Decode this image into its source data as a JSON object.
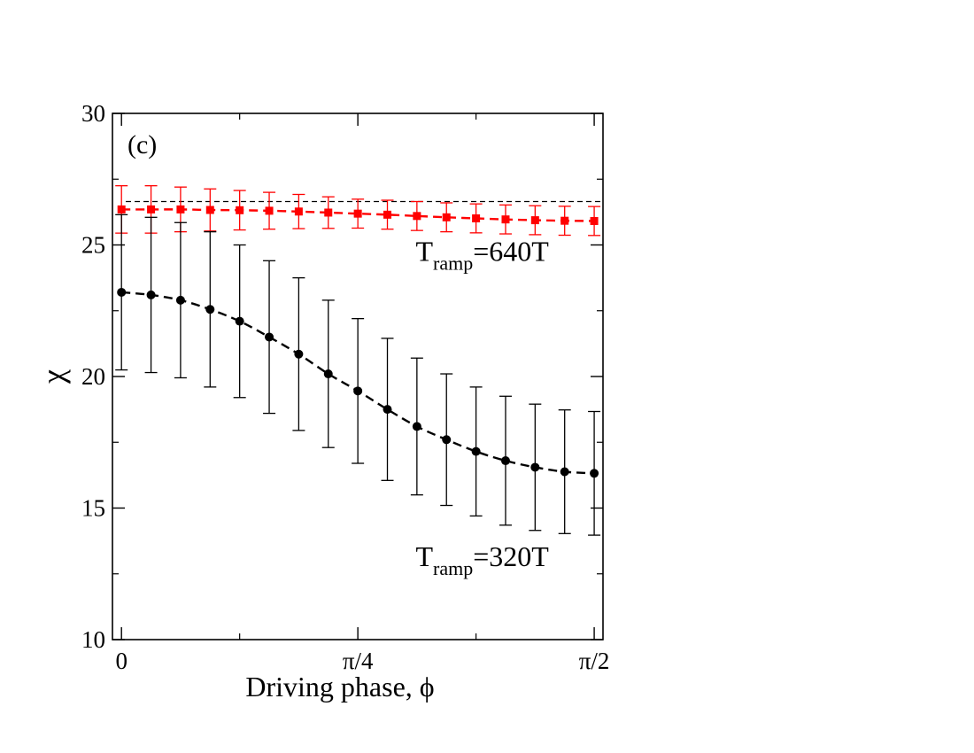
{
  "chart_data": {
    "type": "line",
    "panel_label": "(c)",
    "xlabel": "Driving phase, ϕ",
    "ylabel": "χ",
    "xlim": [
      -0.03,
      1.6
    ],
    "ylim": [
      10,
      30
    ],
    "yticks": [
      10,
      15,
      20,
      25,
      30
    ],
    "ytick_labels": [
      "10",
      "15",
      "20",
      "25",
      "30"
    ],
    "xticks": [
      0,
      0.7853981634,
      1.5707963268
    ],
    "xtick_labels": [
      "0",
      "π/4",
      "π/2"
    ],
    "grid": false,
    "colors": {
      "series_640": "#ff0000",
      "series_320": "#000000",
      "reference": "#000000"
    },
    "reference_line": {
      "y": 26.65,
      "style": "dashed"
    },
    "series": [
      {
        "name": "T_ramp=640T",
        "label_main": "T",
        "label_sub": "ramp",
        "label_tail": "=640T",
        "label_x": 1.42,
        "label_y": 24.4,
        "marker": "square",
        "color": "#ff0000",
        "x": [
          0,
          0.0982,
          0.1963,
          0.2945,
          0.3927,
          0.4909,
          0.589,
          0.6872,
          0.7854,
          0.8836,
          0.9817,
          1.0799,
          1.1781,
          1.2763,
          1.3744,
          1.4726,
          1.5708
        ],
        "y": [
          26.35,
          26.35,
          26.35,
          26.33,
          26.32,
          26.3,
          26.27,
          26.23,
          26.19,
          26.15,
          26.1,
          26.05,
          26.01,
          25.97,
          25.94,
          25.92,
          25.91
        ],
        "err": [
          0.9,
          0.9,
          0.85,
          0.8,
          0.75,
          0.7,
          0.65,
          0.6,
          0.55,
          0.55,
          0.55,
          0.55,
          0.55,
          0.55,
          0.55,
          0.55,
          0.55
        ]
      },
      {
        "name": "T_ramp=320T",
        "label_main": "T",
        "label_sub": "ramp",
        "label_tail": "=320T",
        "label_x": 1.42,
        "label_y": 12.8,
        "marker": "circle",
        "color": "#000000",
        "x": [
          0,
          0.0982,
          0.1963,
          0.2945,
          0.3927,
          0.4909,
          0.589,
          0.6872,
          0.7854,
          0.8836,
          0.9817,
          1.0799,
          1.1781,
          1.2763,
          1.3744,
          1.4726,
          1.5708
        ],
        "y": [
          23.2,
          23.1,
          22.9,
          22.55,
          22.1,
          21.5,
          20.85,
          20.1,
          19.45,
          18.75,
          18.1,
          17.6,
          17.15,
          16.8,
          16.55,
          16.38,
          16.32
        ],
        "err": [
          2.95,
          2.95,
          2.95,
          2.95,
          2.9,
          2.9,
          2.9,
          2.8,
          2.75,
          2.7,
          2.6,
          2.5,
          2.45,
          2.45,
          2.4,
          2.35,
          2.35
        ]
      }
    ]
  }
}
